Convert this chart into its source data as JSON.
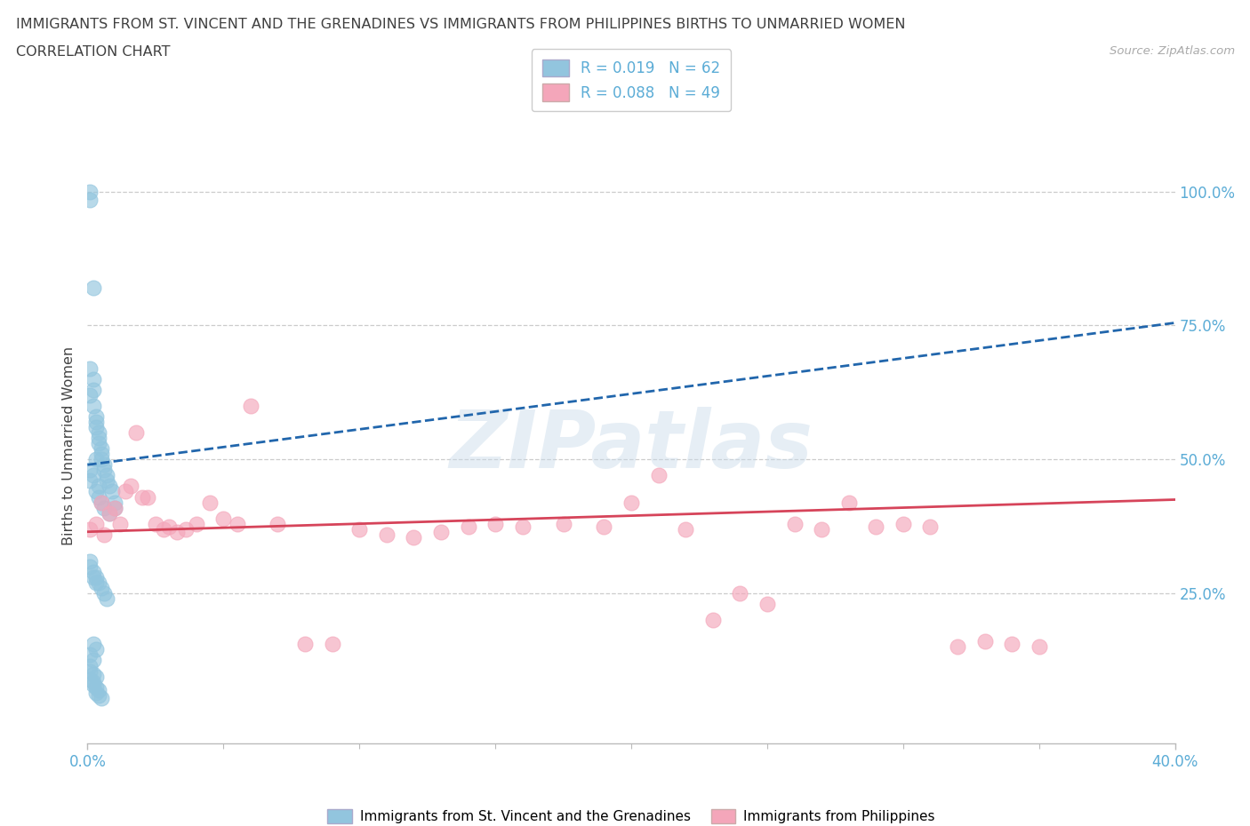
{
  "title_line1": "IMMIGRANTS FROM ST. VINCENT AND THE GRENADINES VS IMMIGRANTS FROM PHILIPPINES BIRTHS TO UNMARRIED WOMEN",
  "title_line2": "CORRELATION CHART",
  "source_text": "Source: ZipAtlas.com",
  "ylabel": "Births to Unmarried Women",
  "watermark": "ZIPatlas",
  "xlim": [
    0.0,
    0.4
  ],
  "ylim": [
    -0.03,
    1.08
  ],
  "ytick_values": [
    0.25,
    0.5,
    0.75,
    1.0
  ],
  "ytick_labels": [
    "25.0%",
    "50.0%",
    "75.0%",
    "100.0%"
  ],
  "xtick_values": [
    0.0,
    0.4
  ],
  "xtick_labels": [
    "0.0%",
    "40.0%"
  ],
  "blue_color": "#92c5de",
  "pink_color": "#f4a6ba",
  "blue_line_color": "#2166ac",
  "pink_line_color": "#d6445a",
  "axis_label_color": "#5bacd6",
  "grid_color": "#cccccc",
  "title_color": "#404040",
  "legend_label1": "Immigrants from St. Vincent and the Grenadines",
  "legend_label2": "Immigrants from Philippines",
  "blue_reg": [
    0.0,
    0.49,
    0.4,
    0.755
  ],
  "pink_reg": [
    0.0,
    0.365,
    0.4,
    0.425
  ],
  "blue_x": [
    0.001,
    0.001,
    0.001,
    0.001,
    0.001,
    0.001,
    0.002,
    0.002,
    0.002,
    0.002,
    0.002,
    0.003,
    0.003,
    0.003,
    0.003,
    0.003,
    0.004,
    0.004,
    0.004,
    0.004,
    0.004,
    0.005,
    0.005,
    0.005,
    0.005,
    0.006,
    0.006,
    0.006,
    0.007,
    0.007,
    0.008,
    0.008,
    0.009,
    0.01,
    0.01,
    0.001,
    0.001,
    0.002,
    0.002,
    0.003,
    0.003,
    0.004,
    0.005,
    0.006,
    0.007,
    0.002,
    0.003,
    0.001,
    0.002,
    0.001,
    0.001,
    0.002,
    0.003,
    0.001,
    0.002,
    0.002,
    0.003,
    0.004,
    0.003,
    0.004,
    0.005
  ],
  "blue_y": [
    1.0,
    0.985,
    0.67,
    0.62,
    0.48,
    0.46,
    0.82,
    0.65,
    0.63,
    0.6,
    0.47,
    0.58,
    0.57,
    0.56,
    0.5,
    0.44,
    0.55,
    0.54,
    0.53,
    0.45,
    0.43,
    0.52,
    0.51,
    0.5,
    0.42,
    0.49,
    0.48,
    0.41,
    0.47,
    0.46,
    0.45,
    0.4,
    0.44,
    0.42,
    0.41,
    0.31,
    0.3,
    0.29,
    0.28,
    0.28,
    0.27,
    0.27,
    0.26,
    0.25,
    0.24,
    0.155,
    0.145,
    0.135,
    0.125,
    0.115,
    0.105,
    0.1,
    0.095,
    0.09,
    0.085,
    0.08,
    0.075,
    0.07,
    0.065,
    0.06,
    0.055
  ],
  "pink_x": [
    0.001,
    0.003,
    0.005,
    0.006,
    0.008,
    0.01,
    0.012,
    0.014,
    0.016,
    0.018,
    0.02,
    0.022,
    0.025,
    0.028,
    0.03,
    0.033,
    0.036,
    0.04,
    0.045,
    0.05,
    0.055,
    0.06,
    0.07,
    0.08,
    0.09,
    0.1,
    0.11,
    0.12,
    0.13,
    0.14,
    0.15,
    0.16,
    0.175,
    0.19,
    0.2,
    0.21,
    0.22,
    0.23,
    0.24,
    0.25,
    0.26,
    0.27,
    0.28,
    0.29,
    0.3,
    0.31,
    0.32,
    0.33,
    0.34,
    0.35
  ],
  "pink_y": [
    0.37,
    0.38,
    0.42,
    0.36,
    0.4,
    0.41,
    0.38,
    0.44,
    0.45,
    0.55,
    0.43,
    0.43,
    0.38,
    0.37,
    0.375,
    0.365,
    0.37,
    0.38,
    0.42,
    0.39,
    0.38,
    0.6,
    0.38,
    0.155,
    0.155,
    0.37,
    0.36,
    0.355,
    0.365,
    0.375,
    0.38,
    0.375,
    0.38,
    0.375,
    0.42,
    0.47,
    0.37,
    0.2,
    0.25,
    0.23,
    0.38,
    0.37,
    0.42,
    0.375,
    0.38,
    0.375,
    0.15,
    0.16,
    0.155,
    0.15
  ]
}
